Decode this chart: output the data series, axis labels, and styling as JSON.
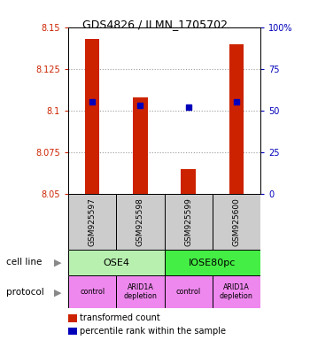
{
  "title": "GDS4826 / ILMN_1705702",
  "samples": [
    "GSM925597",
    "GSM925598",
    "GSM925599",
    "GSM925600"
  ],
  "red_values": [
    8.143,
    8.108,
    8.065,
    8.14
  ],
  "blue_percentiles": [
    55,
    53,
    52,
    55
  ],
  "ylim": [
    8.05,
    8.15
  ],
  "left_yticks": [
    8.05,
    8.075,
    8.1,
    8.125,
    8.15
  ],
  "right_yticks": [
    0,
    25,
    50,
    75,
    100
  ],
  "right_ytick_labels": [
    "0",
    "25",
    "50",
    "75",
    "100%"
  ],
  "cell_lines": [
    "OSE4",
    "IOSE80pc"
  ],
  "cell_line_spans": [
    [
      0,
      2
    ],
    [
      2,
      4
    ]
  ],
  "cell_line_colors": [
    "#b8f0b0",
    "#44ee44"
  ],
  "protocols": [
    "control",
    "ARID1A\ndepletion",
    "control",
    "ARID1A\ndepletion"
  ],
  "protocol_color": "#ee88ee",
  "sample_bg_color": "#cccccc",
  "red_bar_color": "#cc2200",
  "blue_marker_color": "#0000bb",
  "left_tick_color": "#cc2200",
  "right_tick_color": "#0000bb",
  "grid_color": "#999999",
  "title_fontsize": 9,
  "bar_width": 0.3
}
